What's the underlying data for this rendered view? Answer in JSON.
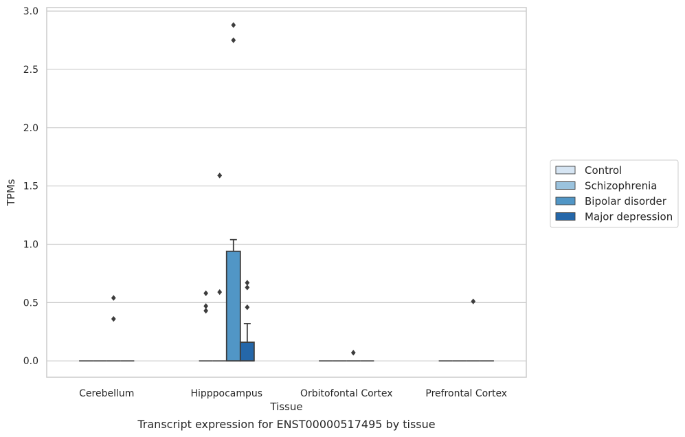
{
  "caption": "Transcript expression for ENST00000517495 by tissue",
  "chart_data": {
    "type": "box",
    "xlabel": "Tissue",
    "ylabel": "TPMs",
    "ylim": [
      -0.14,
      3.03
    ],
    "yticks": [
      "0.0",
      "0.5",
      "1.0",
      "1.5",
      "2.0",
      "2.5",
      "3.0"
    ],
    "grid": "horizontal",
    "legend_position": "right",
    "categories": [
      "Cerebellum",
      "Hipppocampus",
      "Orbitofontal Cortex",
      "Prefrontal Cortex"
    ],
    "series": [
      {
        "name": "Control",
        "color": "#d6e5f3"
      },
      {
        "name": "Schizophrenia",
        "color": "#9bc3de"
      },
      {
        "name": "Bipolar disorder",
        "color": "#5196c6"
      },
      {
        "name": "Major depression",
        "color": "#2567a9"
      }
    ],
    "boxes": [
      {
        "category": "Cerebellum",
        "series": "Control",
        "q1": 0,
        "median": 0,
        "q3": 0,
        "whisker_low": 0,
        "whisker_high": 0,
        "outliers": []
      },
      {
        "category": "Cerebellum",
        "series": "Schizophrenia",
        "q1": 0,
        "median": 0,
        "q3": 0,
        "whisker_low": 0,
        "whisker_high": 0,
        "outliers": []
      },
      {
        "category": "Cerebellum",
        "series": "Bipolar disorder",
        "q1": 0,
        "median": 0,
        "q3": 0,
        "whisker_low": 0,
        "whisker_high": 0,
        "outliers": [
          0.54,
          0.36
        ]
      },
      {
        "category": "Cerebellum",
        "series": "Major depression",
        "q1": 0,
        "median": 0,
        "q3": 0,
        "whisker_low": 0,
        "whisker_high": 0,
        "outliers": []
      },
      {
        "category": "Hipppocampus",
        "series": "Control",
        "q1": 0,
        "median": 0,
        "q3": 0,
        "whisker_low": 0,
        "whisker_high": 0,
        "outliers": [
          0.58,
          0.47,
          0.43
        ]
      },
      {
        "category": "Hipppocampus",
        "series": "Schizophrenia",
        "q1": 0,
        "median": 0,
        "q3": 0,
        "whisker_low": 0,
        "whisker_high": 0,
        "outliers": [
          1.59,
          0.59
        ]
      },
      {
        "category": "Hipppocampus",
        "series": "Bipolar disorder",
        "q1": 0,
        "median": 0,
        "q3": 0.94,
        "whisker_low": 0,
        "whisker_high": 1.04,
        "outliers": [
          2.88,
          2.75
        ]
      },
      {
        "category": "Hipppocampus",
        "series": "Major depression",
        "q1": 0,
        "median": 0,
        "q3": 0.16,
        "whisker_low": 0,
        "whisker_high": 0.32,
        "outliers": [
          0.67,
          0.63,
          0.46
        ]
      },
      {
        "category": "Orbitofontal Cortex",
        "series": "Control",
        "q1": 0,
        "median": 0,
        "q3": 0,
        "whisker_low": 0,
        "whisker_high": 0,
        "outliers": []
      },
      {
        "category": "Orbitofontal Cortex",
        "series": "Schizophrenia",
        "q1": 0,
        "median": 0,
        "q3": 0,
        "whisker_low": 0,
        "whisker_high": 0,
        "outliers": []
      },
      {
        "category": "Orbitofontal Cortex",
        "series": "Bipolar disorder",
        "q1": 0,
        "median": 0,
        "q3": 0,
        "whisker_low": 0,
        "whisker_high": 0,
        "outliers": [
          0.07
        ]
      },
      {
        "category": "Orbitofontal Cortex",
        "series": "Major depression",
        "q1": 0,
        "median": 0,
        "q3": 0,
        "whisker_low": 0,
        "whisker_high": 0,
        "outliers": []
      },
      {
        "category": "Prefrontal Cortex",
        "series": "Control",
        "q1": 0,
        "median": 0,
        "q3": 0,
        "whisker_low": 0,
        "whisker_high": 0,
        "outliers": []
      },
      {
        "category": "Prefrontal Cortex",
        "series": "Schizophrenia",
        "q1": 0,
        "median": 0,
        "q3": 0,
        "whisker_low": 0,
        "whisker_high": 0,
        "outliers": []
      },
      {
        "category": "Prefrontal Cortex",
        "series": "Bipolar disorder",
        "q1": 0,
        "median": 0,
        "q3": 0,
        "whisker_low": 0,
        "whisker_high": 0,
        "outliers": [
          0.51
        ]
      },
      {
        "category": "Prefrontal Cortex",
        "series": "Major depression",
        "q1": 0,
        "median": 0,
        "q3": 0,
        "whisker_low": 0,
        "whisker_high": 0,
        "outliers": []
      }
    ]
  }
}
